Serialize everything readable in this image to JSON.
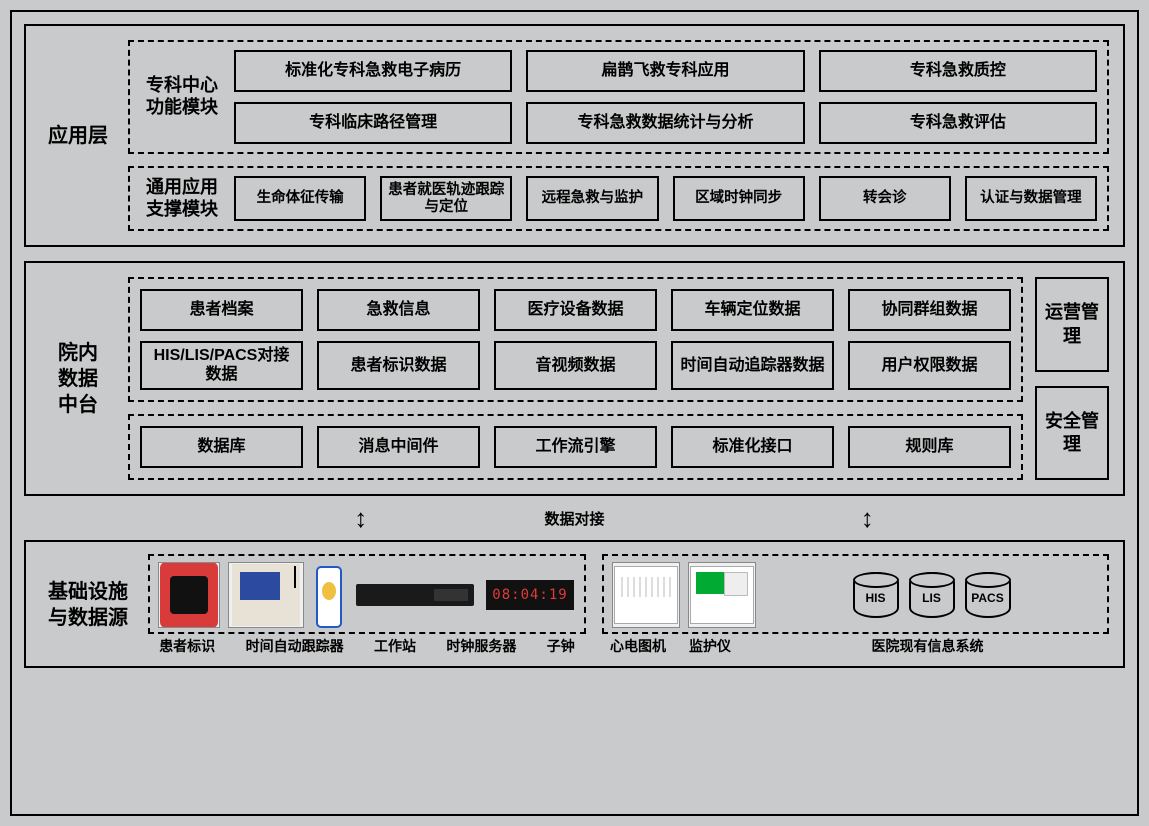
{
  "colors": {
    "bg": "#c9cacb",
    "border": "#000000"
  },
  "fonts": {
    "label": 20,
    "group": 18,
    "cell": 16,
    "cell_small": 14.5,
    "device": 14
  },
  "layers": {
    "app": {
      "label": "应用层",
      "groups": {
        "specialty": {
          "label": "专科中心\n功能模块",
          "items": [
            "标准化专科急救电子病历",
            "扁鹊飞救专科应用",
            "专科急救质控",
            "专科临床路径管理",
            "专科急救数据统计与分析",
            "专科急救评估"
          ]
        },
        "common": {
          "label": "通用应用\n支撑模块",
          "items": [
            "生命体征传输",
            "患者就医轨迹跟踪与定位",
            "远程急救与监护",
            "区域时钟同步",
            "转会诊",
            "认证与数据管理"
          ]
        }
      }
    },
    "mid": {
      "label": "院内\n数据\n中台",
      "data_items": [
        "患者档案",
        "急救信息",
        "医疗设备数据",
        "车辆定位数据",
        "协同群组数据",
        "HIS/LIS/PACS对接数据",
        "患者标识数据",
        "音视频数据",
        "时间自动追踪器数据",
        "用户权限数据"
      ],
      "base_items": [
        "数据库",
        "消息中间件",
        "工作流引擎",
        "标准化接口",
        "规则库"
      ],
      "side": [
        "运营管理",
        "安全管理"
      ]
    },
    "connector": {
      "label": "数据对接",
      "arrow_left_pct": 30,
      "arrow_right_pct": 76
    },
    "infra": {
      "label": "基础设施\n与数据源",
      "devices_left": [
        {
          "id": "patient-id",
          "label": "患者标识"
        },
        {
          "id": "time-tracker",
          "label": "时间自动跟踪器"
        },
        {
          "id": "workstation",
          "label": "工作站"
        },
        {
          "id": "clock-server",
          "label": "时钟服务器"
        },
        {
          "id": "sub-clock",
          "label": "子钟",
          "clock_text": "08:04:19"
        }
      ],
      "devices_right": [
        {
          "id": "ecg",
          "label": "心电图机"
        },
        {
          "id": "monitor",
          "label": "监护仪"
        }
      ],
      "dbs": [
        "HIS",
        "LIS",
        "PACS"
      ],
      "dbs_label": "医院现有信息系统"
    }
  }
}
